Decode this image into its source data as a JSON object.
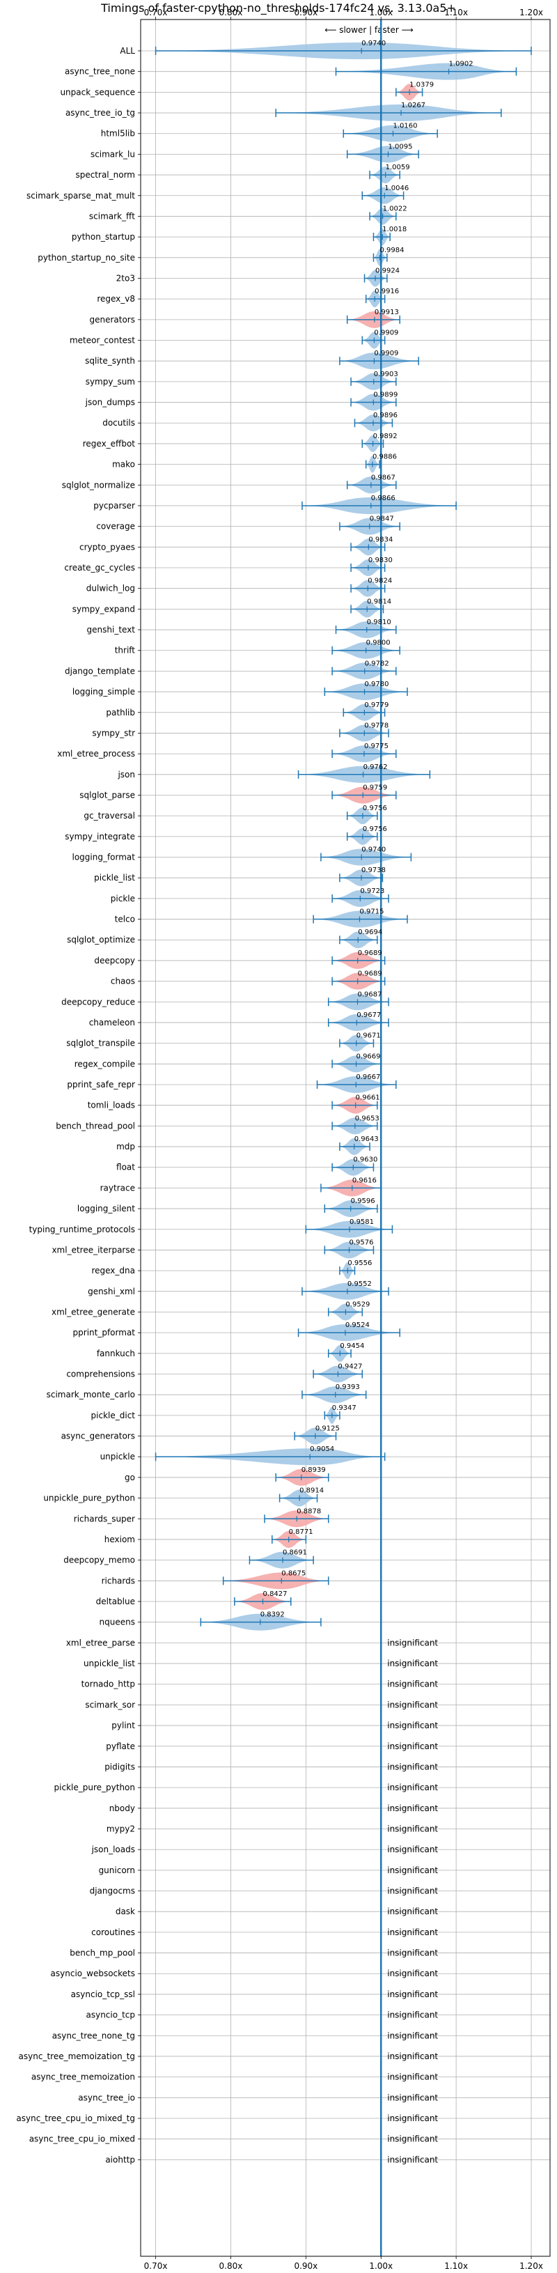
{
  "chart_data": {
    "type": "violin",
    "title": "Timings of faster-cpython-no_thresholds-174fc24 vs. 3.13.0a5+",
    "direction_label": "⟵ slower  |  faster ⟶",
    "xlim": [
      0.68,
      1.225
    ],
    "xticks": [
      0.7,
      0.8,
      0.9,
      1.0,
      1.1,
      1.2
    ],
    "xtick_labels": [
      "0.70x",
      "0.80x",
      "0.90x",
      "1.00x",
      "1.10x",
      "1.20x"
    ],
    "reference_line": 1.0,
    "grid": true,
    "insignificant_label": "insignificant",
    "colors": {
      "faster": "#9ec4e4",
      "slower": "#f4a3a3",
      "errorbar": "#1f77b4",
      "reference": "#1f77b4",
      "grid": "#b0b0b0"
    },
    "benchmarks": [
      {
        "name": "ALL",
        "value": 0.974,
        "label": "0.9740",
        "low": 0.7,
        "high": 1.2,
        "color": "faster"
      },
      {
        "name": "async_tree_none",
        "value": 1.0902,
        "label": "1.0902",
        "low": 0.94,
        "high": 1.18,
        "color": "faster"
      },
      {
        "name": "unpack_sequence",
        "value": 1.0379,
        "label": "1.0379",
        "low": 1.02,
        "high": 1.055,
        "color": "slower"
      },
      {
        "name": "async_tree_io_tg",
        "value": 1.0267,
        "label": "1.0267",
        "low": 0.86,
        "high": 1.16,
        "color": "faster"
      },
      {
        "name": "html5lib",
        "value": 1.016,
        "label": "1.0160",
        "low": 0.95,
        "high": 1.075,
        "color": "faster"
      },
      {
        "name": "scimark_lu",
        "value": 1.0095,
        "label": "1.0095",
        "low": 0.955,
        "high": 1.05,
        "color": "faster"
      },
      {
        "name": "spectral_norm",
        "value": 1.0059,
        "label": "1.0059",
        "low": 0.985,
        "high": 1.025,
        "color": "faster"
      },
      {
        "name": "scimark_sparse_mat_mult",
        "value": 1.0046,
        "label": "1.0046",
        "low": 0.975,
        "high": 1.03,
        "color": "faster"
      },
      {
        "name": "scimark_fft",
        "value": 1.0022,
        "label": "1.0022",
        "low": 0.985,
        "high": 1.02,
        "color": "faster"
      },
      {
        "name": "python_startup",
        "value": 1.0018,
        "label": "1.0018",
        "low": 0.99,
        "high": 1.012,
        "color": "faster"
      },
      {
        "name": "python_startup_no_site",
        "value": 0.9984,
        "label": "0.9984",
        "low": 0.99,
        "high": 1.008,
        "color": "faster"
      },
      {
        "name": "2to3",
        "value": 0.9924,
        "label": "0.9924",
        "low": 0.978,
        "high": 1.008,
        "color": "faster"
      },
      {
        "name": "regex_v8",
        "value": 0.9916,
        "label": "0.9916",
        "low": 0.98,
        "high": 1.005,
        "color": "faster"
      },
      {
        "name": "generators",
        "value": 0.9913,
        "label": "0.9913",
        "low": 0.955,
        "high": 1.025,
        "color": "slower"
      },
      {
        "name": "meteor_contest",
        "value": 0.9909,
        "label": "0.9909",
        "low": 0.975,
        "high": 1.005,
        "color": "faster"
      },
      {
        "name": "sqlite_synth",
        "value": 0.9909,
        "label": "0.9909",
        "low": 0.945,
        "high": 1.05,
        "color": "faster"
      },
      {
        "name": "sympy_sum",
        "value": 0.9903,
        "label": "0.9903",
        "low": 0.96,
        "high": 1.02,
        "color": "faster"
      },
      {
        "name": "json_dumps",
        "value": 0.9899,
        "label": "0.9899",
        "low": 0.96,
        "high": 1.02,
        "color": "faster"
      },
      {
        "name": "docutils",
        "value": 0.9896,
        "label": "0.9896",
        "low": 0.965,
        "high": 1.015,
        "color": "faster"
      },
      {
        "name": "regex_effbot",
        "value": 0.9892,
        "label": "0.9892",
        "low": 0.975,
        "high": 1.003,
        "color": "faster"
      },
      {
        "name": "mako",
        "value": 0.9886,
        "label": "0.9886",
        "low": 0.98,
        "high": 0.998,
        "color": "faster"
      },
      {
        "name": "sqlglot_normalize",
        "value": 0.9867,
        "label": "0.9867",
        "low": 0.955,
        "high": 1.02,
        "color": "faster"
      },
      {
        "name": "pycparser",
        "value": 0.9866,
        "label": "0.9866",
        "low": 0.895,
        "high": 1.1,
        "color": "faster"
      },
      {
        "name": "coverage",
        "value": 0.9847,
        "label": "0.9847",
        "low": 0.945,
        "high": 1.025,
        "color": "faster"
      },
      {
        "name": "crypto_pyaes",
        "value": 0.9834,
        "label": "0.9834",
        "low": 0.96,
        "high": 1.005,
        "color": "faster"
      },
      {
        "name": "create_gc_cycles",
        "value": 0.983,
        "label": "0.9830",
        "low": 0.96,
        "high": 1.005,
        "color": "faster"
      },
      {
        "name": "dulwich_log",
        "value": 0.9824,
        "label": "0.9824",
        "low": 0.96,
        "high": 1.005,
        "color": "faster"
      },
      {
        "name": "sympy_expand",
        "value": 0.9814,
        "label": "0.9814",
        "low": 0.96,
        "high": 1.003,
        "color": "faster"
      },
      {
        "name": "genshi_text",
        "value": 0.981,
        "label": "0.9810",
        "low": 0.94,
        "high": 1.02,
        "color": "faster"
      },
      {
        "name": "thrift",
        "value": 0.98,
        "label": "0.9800",
        "low": 0.935,
        "high": 1.025,
        "color": "faster"
      },
      {
        "name": "django_template",
        "value": 0.9782,
        "label": "0.9782",
        "low": 0.935,
        "high": 1.02,
        "color": "faster"
      },
      {
        "name": "logging_simple",
        "value": 0.978,
        "label": "0.9780",
        "low": 0.925,
        "high": 1.035,
        "color": "faster"
      },
      {
        "name": "pathlib",
        "value": 0.9779,
        "label": "0.9779",
        "low": 0.95,
        "high": 1.005,
        "color": "faster"
      },
      {
        "name": "sympy_str",
        "value": 0.9778,
        "label": "0.9778",
        "low": 0.945,
        "high": 1.01,
        "color": "faster"
      },
      {
        "name": "xml_etree_process",
        "value": 0.9775,
        "label": "0.9775",
        "low": 0.935,
        "high": 1.02,
        "color": "faster"
      },
      {
        "name": "json",
        "value": 0.9762,
        "label": "0.9762",
        "low": 0.89,
        "high": 1.065,
        "color": "faster"
      },
      {
        "name": "sqlglot_parse",
        "value": 0.9759,
        "label": "0.9759",
        "low": 0.935,
        "high": 1.02,
        "color": "slower"
      },
      {
        "name": "gc_traversal",
        "value": 0.9756,
        "label": "0.9756",
        "low": 0.955,
        "high": 0.995,
        "color": "faster"
      },
      {
        "name": "sympy_integrate",
        "value": 0.9756,
        "label": "0.9756",
        "low": 0.955,
        "high": 0.995,
        "color": "faster"
      },
      {
        "name": "logging_format",
        "value": 0.974,
        "label": "0.9740",
        "low": 0.92,
        "high": 1.04,
        "color": "faster"
      },
      {
        "name": "pickle_list",
        "value": 0.9738,
        "label": "0.9738",
        "low": 0.945,
        "high": 1.002,
        "color": "faster"
      },
      {
        "name": "pickle",
        "value": 0.9723,
        "label": "0.9723",
        "low": 0.935,
        "high": 1.01,
        "color": "faster"
      },
      {
        "name": "telco",
        "value": 0.9715,
        "label": "0.9715",
        "low": 0.91,
        "high": 1.035,
        "color": "faster"
      },
      {
        "name": "sqlglot_optimize",
        "value": 0.9694,
        "label": "0.9694",
        "low": 0.945,
        "high": 0.995,
        "color": "faster"
      },
      {
        "name": "deepcopy",
        "value": 0.9689,
        "label": "0.9689",
        "low": 0.935,
        "high": 1.005,
        "color": "slower"
      },
      {
        "name": "chaos",
        "value": 0.9689,
        "label": "0.9689",
        "low": 0.935,
        "high": 1.005,
        "color": "slower"
      },
      {
        "name": "deepcopy_reduce",
        "value": 0.9687,
        "label": "0.9687",
        "low": 0.93,
        "high": 1.01,
        "color": "faster"
      },
      {
        "name": "chameleon",
        "value": 0.9677,
        "label": "0.9677",
        "low": 0.93,
        "high": 1.01,
        "color": "faster"
      },
      {
        "name": "sqlglot_transpile",
        "value": 0.9671,
        "label": "0.9671",
        "low": 0.945,
        "high": 0.99,
        "color": "faster"
      },
      {
        "name": "regex_compile",
        "value": 0.9669,
        "label": "0.9669",
        "low": 0.935,
        "high": 1.0,
        "color": "faster"
      },
      {
        "name": "pprint_safe_repr",
        "value": 0.9667,
        "label": "0.9667",
        "low": 0.915,
        "high": 1.02,
        "color": "faster"
      },
      {
        "name": "tomli_loads",
        "value": 0.9661,
        "label": "0.9661",
        "low": 0.935,
        "high": 0.995,
        "color": "slower"
      },
      {
        "name": "bench_thread_pool",
        "value": 0.9653,
        "label": "0.9653",
        "low": 0.935,
        "high": 0.995,
        "color": "faster"
      },
      {
        "name": "mdp",
        "value": 0.9643,
        "label": "0.9643",
        "low": 0.945,
        "high": 0.985,
        "color": "faster"
      },
      {
        "name": "float",
        "value": 0.963,
        "label": "0.9630",
        "low": 0.935,
        "high": 0.99,
        "color": "faster"
      },
      {
        "name": "raytrace",
        "value": 0.9616,
        "label": "0.9616",
        "low": 0.92,
        "high": 1.0,
        "color": "slower"
      },
      {
        "name": "logging_silent",
        "value": 0.9596,
        "label": "0.9596",
        "low": 0.925,
        "high": 0.995,
        "color": "faster"
      },
      {
        "name": "typing_runtime_protocols",
        "value": 0.9581,
        "label": "0.9581",
        "low": 0.9,
        "high": 1.015,
        "color": "faster"
      },
      {
        "name": "xml_etree_iterparse",
        "value": 0.9576,
        "label": "0.9576",
        "low": 0.925,
        "high": 0.99,
        "color": "faster"
      },
      {
        "name": "regex_dna",
        "value": 0.9556,
        "label": "0.9556",
        "low": 0.945,
        "high": 0.965,
        "color": "faster"
      },
      {
        "name": "genshi_xml",
        "value": 0.9552,
        "label": "0.9552",
        "low": 0.895,
        "high": 1.01,
        "color": "faster"
      },
      {
        "name": "xml_etree_generate",
        "value": 0.9529,
        "label": "0.9529",
        "low": 0.93,
        "high": 0.975,
        "color": "faster"
      },
      {
        "name": "pprint_pformat",
        "value": 0.9524,
        "label": "0.9524",
        "low": 0.89,
        "high": 1.025,
        "color": "faster"
      },
      {
        "name": "fannkuch",
        "value": 0.9454,
        "label": "0.9454",
        "low": 0.93,
        "high": 0.96,
        "color": "faster"
      },
      {
        "name": "comprehensions",
        "value": 0.9427,
        "label": "0.9427",
        "low": 0.91,
        "high": 0.975,
        "color": "faster"
      },
      {
        "name": "scimark_monte_carlo",
        "value": 0.9393,
        "label": "0.9393",
        "low": 0.895,
        "high": 0.98,
        "color": "faster"
      },
      {
        "name": "pickle_dict",
        "value": 0.9347,
        "label": "0.9347",
        "low": 0.925,
        "high": 0.945,
        "color": "faster"
      },
      {
        "name": "async_generators",
        "value": 0.9125,
        "label": "0.9125",
        "low": 0.885,
        "high": 0.94,
        "color": "faster"
      },
      {
        "name": "unpickle",
        "value": 0.9054,
        "label": "0.9054",
        "low": 0.7,
        "high": 1.005,
        "color": "faster"
      },
      {
        "name": "go",
        "value": 0.8939,
        "label": "0.8939",
        "low": 0.86,
        "high": 0.93,
        "color": "slower"
      },
      {
        "name": "unpickle_pure_python",
        "value": 0.8914,
        "label": "0.8914",
        "low": 0.865,
        "high": 0.915,
        "color": "faster"
      },
      {
        "name": "richards_super",
        "value": 0.8878,
        "label": "0.8878",
        "low": 0.845,
        "high": 0.93,
        "color": "slower"
      },
      {
        "name": "hexiom",
        "value": 0.8771,
        "label": "0.8771",
        "low": 0.855,
        "high": 0.9,
        "color": "slower"
      },
      {
        "name": "deepcopy_memo",
        "value": 0.8691,
        "label": "0.8691",
        "low": 0.825,
        "high": 0.91,
        "color": "faster"
      },
      {
        "name": "richards",
        "value": 0.8675,
        "label": "0.8675",
        "low": 0.79,
        "high": 0.93,
        "color": "slower"
      },
      {
        "name": "deltablue",
        "value": 0.8427,
        "label": "0.8427",
        "low": 0.805,
        "high": 0.88,
        "color": "slower"
      },
      {
        "name": "nqueens",
        "value": 0.8392,
        "label": "0.8392",
        "low": 0.76,
        "high": 0.92,
        "color": "faster"
      }
    ],
    "insignificant": [
      "xml_etree_parse",
      "unpickle_list",
      "tornado_http",
      "scimark_sor",
      "pylint",
      "pyflate",
      "pidigits",
      "pickle_pure_python",
      "nbody",
      "mypy2",
      "json_loads",
      "gunicorn",
      "djangocms",
      "dask",
      "coroutines",
      "bench_mp_pool",
      "asyncio_websockets",
      "asyncio_tcp_ssl",
      "asyncio_tcp",
      "async_tree_none_tg",
      "async_tree_memoization_tg",
      "async_tree_memoization",
      "async_tree_io",
      "async_tree_cpu_io_mixed_tg",
      "async_tree_cpu_io_mixed",
      "aiohttp"
    ]
  }
}
